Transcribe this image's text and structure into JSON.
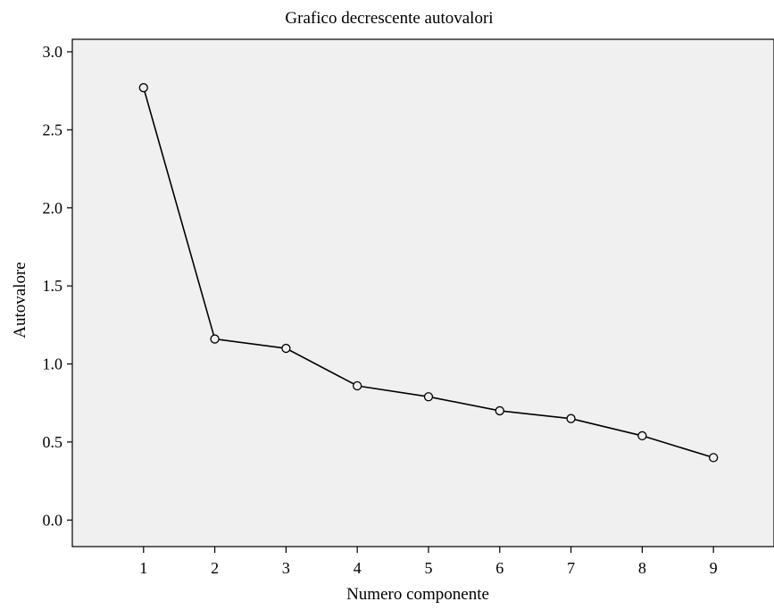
{
  "chart_data": {
    "type": "line",
    "title": "Grafico decrescente autovalori",
    "xlabel": "Numero componente",
    "ylabel": "Autovalore",
    "x": [
      1,
      2,
      3,
      4,
      5,
      6,
      7,
      8,
      9
    ],
    "x_tick_labels": [
      "1",
      "2",
      "3",
      "4",
      "5",
      "6",
      "7",
      "8",
      "9"
    ],
    "y_tick_labels": [
      "0.0",
      "0.5",
      "1.0",
      "1.5",
      "2.0",
      "2.5",
      "3.0"
    ],
    "y_ticks": [
      0,
      0.5,
      1.0,
      1.5,
      2.0,
      2.5,
      3.0
    ],
    "series": [
      {
        "values": [
          2.77,
          1.16,
          1.1,
          0.86,
          0.79,
          0.7,
          0.65,
          0.54,
          0.4
        ]
      }
    ],
    "xlim": [
      0,
      9.85
    ],
    "ylim": [
      -0.17,
      3.08
    ],
    "grid": false,
    "colors": {
      "plot_background": "#f0f0f0",
      "line": "#000000",
      "marker_stroke": "#000000"
    },
    "marker": "open-circle"
  }
}
